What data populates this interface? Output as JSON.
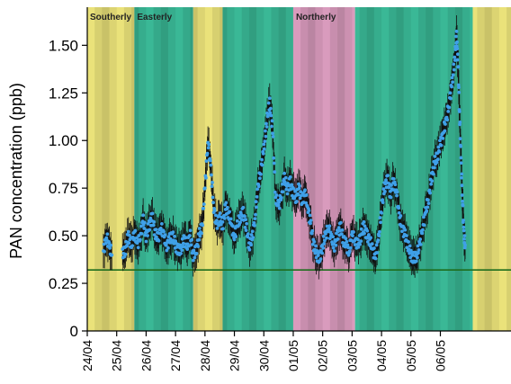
{
  "chart_data": {
    "type": "scatter",
    "title": "",
    "ylabel": "PAN concentration (ppb)",
    "xlabel": "",
    "x_unit": "day index from 24/04",
    "xlim": [
      0,
      14.4
    ],
    "ylim": [
      0,
      1.7
    ],
    "x_ticks": [
      {
        "x": 0,
        "label": "24/04"
      },
      {
        "x": 1,
        "label": "25/04"
      },
      {
        "x": 2,
        "label": "26/04"
      },
      {
        "x": 3,
        "label": "27/04"
      },
      {
        "x": 4,
        "label": "28/04"
      },
      {
        "x": 5,
        "label": "29/04"
      },
      {
        "x": 6,
        "label": "30/04"
      },
      {
        "x": 7,
        "label": "01/05"
      },
      {
        "x": 8,
        "label": "02/05"
      },
      {
        "x": 9,
        "label": "03/05"
      },
      {
        "x": 10,
        "label": "04/05"
      },
      {
        "x": 11,
        "label": "05/05"
      },
      {
        "x": 12,
        "label": "06/05"
      }
    ],
    "y_ticks": [
      {
        "y": 0,
        "label": "0"
      },
      {
        "y": 0.25,
        "label": "0.25"
      },
      {
        "y": 0.5,
        "label": "0.50"
      },
      {
        "y": 0.75,
        "label": "0.75"
      },
      {
        "y": 1.0,
        "label": "1.00"
      },
      {
        "y": 1.25,
        "label": "1.25"
      },
      {
        "y": 1.5,
        "label": "1.50"
      }
    ],
    "regions": [
      {
        "label": "Southerly",
        "x0": 0.0,
        "x1": 1.6,
        "color": "#eae27a"
      },
      {
        "label": "Easterly",
        "x0": 1.6,
        "x1": 3.6,
        "color": "#3ab896"
      },
      {
        "label": "",
        "x0": 3.6,
        "x1": 4.6,
        "color": "#eae27a"
      },
      {
        "label": "",
        "x0": 4.6,
        "x1": 7.0,
        "color": "#3ab896"
      },
      {
        "label": "Northerly",
        "x0": 7.0,
        "x1": 9.1,
        "color": "#d99bbd"
      },
      {
        "label": "",
        "x0": 9.1,
        "x1": 13.1,
        "color": "#3ab896"
      },
      {
        "label": "",
        "x0": 13.1,
        "x1": 14.4,
        "color": "#eae27a"
      }
    ],
    "reference_line": {
      "y": 0.32,
      "color": "#1e6e1e"
    },
    "series": [
      {
        "color": "#3fa0e8",
        "error_bar_color": "#111111",
        "profile": [
          [
            0.55,
            0.42
          ],
          [
            0.65,
            0.5
          ],
          [
            0.75,
            0.44
          ],
          [
            0.85,
            0.4
          ],
          [
            1.2,
            0.4
          ],
          [
            1.3,
            0.43
          ],
          [
            1.4,
            0.5
          ],
          [
            1.5,
            0.45
          ],
          [
            1.6,
            0.52
          ],
          [
            1.7,
            0.45
          ],
          [
            1.8,
            0.5
          ],
          [
            1.9,
            0.58
          ],
          [
            2.0,
            0.5
          ],
          [
            2.1,
            0.55
          ],
          [
            2.2,
            0.6
          ],
          [
            2.3,
            0.52
          ],
          [
            2.4,
            0.48
          ],
          [
            2.5,
            0.55
          ],
          [
            2.6,
            0.5
          ],
          [
            2.7,
            0.45
          ],
          [
            2.8,
            0.48
          ],
          [
            2.9,
            0.5
          ],
          [
            3.0,
            0.45
          ],
          [
            3.1,
            0.42
          ],
          [
            3.2,
            0.44
          ],
          [
            3.3,
            0.48
          ],
          [
            3.4,
            0.45
          ],
          [
            3.5,
            0.5
          ],
          [
            3.6,
            0.4
          ],
          [
            3.7,
            0.42
          ],
          [
            3.8,
            0.5
          ],
          [
            3.9,
            0.55
          ],
          [
            4.0,
            0.75
          ],
          [
            4.1,
            1.0
          ],
          [
            4.2,
            0.85
          ],
          [
            4.3,
            0.65
          ],
          [
            4.4,
            0.55
          ],
          [
            4.5,
            0.6
          ],
          [
            4.6,
            0.55
          ],
          [
            4.7,
            0.65
          ],
          [
            4.8,
            0.62
          ],
          [
            4.9,
            0.55
          ],
          [
            5.0,
            0.5
          ],
          [
            5.1,
            0.55
          ],
          [
            5.2,
            0.6
          ],
          [
            5.3,
            0.62
          ],
          [
            5.4,
            0.55
          ],
          [
            5.5,
            0.45
          ],
          [
            5.6,
            0.48
          ],
          [
            5.7,
            0.6
          ],
          [
            5.8,
            0.75
          ],
          [
            5.9,
            0.85
          ],
          [
            6.0,
            0.95
          ],
          [
            6.1,
            1.1
          ],
          [
            6.2,
            1.2
          ],
          [
            6.3,
            1.05
          ],
          [
            6.4,
            0.7
          ],
          [
            6.5,
            0.65
          ],
          [
            6.6,
            0.72
          ],
          [
            6.7,
            0.8
          ],
          [
            6.8,
            0.75
          ],
          [
            6.9,
            0.78
          ],
          [
            7.0,
            0.72
          ],
          [
            7.1,
            0.7
          ],
          [
            7.2,
            0.75
          ],
          [
            7.3,
            0.68
          ],
          [
            7.4,
            0.72
          ],
          [
            7.5,
            0.65
          ],
          [
            7.6,
            0.55
          ],
          [
            7.7,
            0.45
          ],
          [
            7.8,
            0.4
          ],
          [
            7.9,
            0.38
          ],
          [
            8.0,
            0.45
          ],
          [
            8.1,
            0.5
          ],
          [
            8.2,
            0.55
          ],
          [
            8.3,
            0.48
          ],
          [
            8.4,
            0.45
          ],
          [
            8.5,
            0.5
          ],
          [
            8.6,
            0.55
          ],
          [
            8.7,
            0.48
          ],
          [
            8.8,
            0.45
          ],
          [
            8.9,
            0.42
          ],
          [
            9.0,
            0.5
          ],
          [
            9.1,
            0.48
          ],
          [
            9.2,
            0.45
          ],
          [
            9.3,
            0.5
          ],
          [
            9.4,
            0.55
          ],
          [
            9.5,
            0.5
          ],
          [
            9.6,
            0.48
          ],
          [
            9.7,
            0.42
          ],
          [
            9.8,
            0.4
          ],
          [
            9.9,
            0.48
          ],
          [
            10.0,
            0.65
          ],
          [
            10.1,
            0.75
          ],
          [
            10.2,
            0.8
          ],
          [
            10.3,
            0.72
          ],
          [
            10.4,
            0.78
          ],
          [
            10.5,
            0.75
          ],
          [
            10.6,
            0.6
          ],
          [
            10.7,
            0.55
          ],
          [
            10.8,
            0.5
          ],
          [
            10.9,
            0.45
          ],
          [
            11.0,
            0.4
          ],
          [
            11.1,
            0.38
          ],
          [
            11.2,
            0.4
          ],
          [
            11.3,
            0.45
          ],
          [
            11.4,
            0.55
          ],
          [
            11.5,
            0.62
          ],
          [
            11.6,
            0.7
          ],
          [
            11.7,
            0.8
          ],
          [
            11.8,
            0.88
          ],
          [
            11.9,
            0.92
          ],
          [
            12.0,
            0.98
          ],
          [
            12.1,
            1.05
          ],
          [
            12.2,
            1.1
          ],
          [
            12.3,
            1.2
          ],
          [
            12.4,
            1.3
          ],
          [
            12.5,
            1.45
          ],
          [
            12.55,
            1.55
          ],
          [
            12.6,
            1.4
          ],
          [
            12.65,
            1.15
          ],
          [
            12.7,
            0.9
          ],
          [
            12.75,
            0.7
          ],
          [
            12.8,
            0.5
          ],
          [
            12.85,
            0.44
          ]
        ]
      }
    ]
  }
}
